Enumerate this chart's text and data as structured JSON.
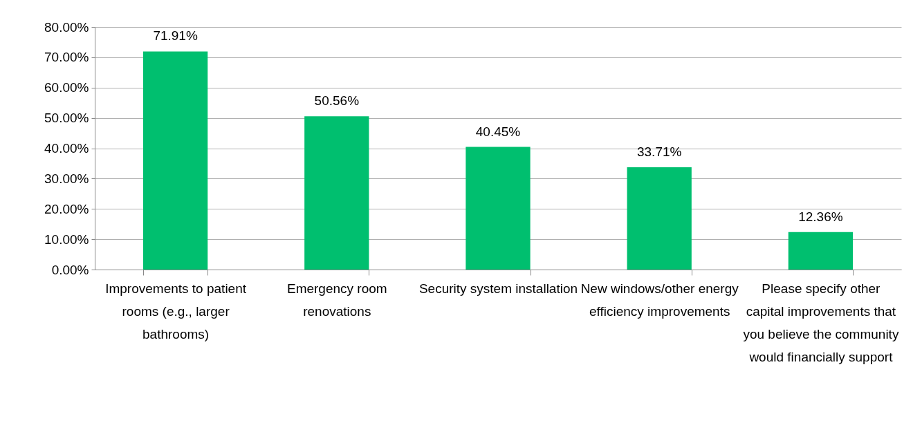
{
  "chart_data": {
    "type": "bar",
    "categories": [
      "Improvements to patient rooms (e.g., larger bathrooms)",
      "Emergency room renovations",
      "Security system installation",
      "New windows/other energy efficiency improvements",
      "Please specify other capital improvements that you believe the community would financially support"
    ],
    "values": [
      71.91,
      50.56,
      40.45,
      33.71,
      12.36
    ],
    "value_labels": [
      "71.91%",
      "50.56%",
      "40.45%",
      "33.71%",
      "12.36%"
    ],
    "color": "#00bf6f",
    "ylim": [
      0,
      80
    ],
    "yticks": [
      {
        "value": 0,
        "label": "0.00%"
      },
      {
        "value": 10,
        "label": "10.00%"
      },
      {
        "value": 20,
        "label": "20.00%"
      },
      {
        "value": 30,
        "label": "30.00%"
      },
      {
        "value": 40,
        "label": "40.00%"
      },
      {
        "value": 50,
        "label": "50.00%"
      },
      {
        "value": 60,
        "label": "60.00%"
      },
      {
        "value": 70,
        "label": "70.00%"
      },
      {
        "value": 80,
        "label": "80.00%"
      }
    ],
    "grid": "y"
  }
}
